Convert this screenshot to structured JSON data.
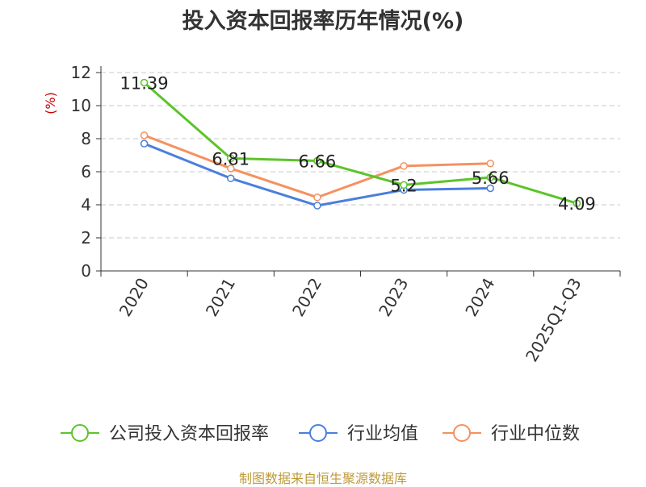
{
  "title": "投入资本回报率历年情况(%)",
  "source": "制图数据来自恒生聚源数据库",
  "colors": {
    "company": "#5cc42a",
    "industry_avg": "#4a7fdb",
    "industry_median": "#f5915f",
    "ylabel": "#cc0000"
  },
  "chart_data": {
    "type": "line",
    "title": "投入资本回报率历年情况(%)",
    "ylabel": "(%)",
    "xlabel": "",
    "ylim": [
      0,
      12
    ],
    "yticks": [
      0,
      2,
      4,
      6,
      8,
      10,
      12
    ],
    "grid": true,
    "legend_position": "bottom",
    "categories": [
      "2020",
      "2021",
      "2022",
      "2023",
      "2024",
      "2025Q1-Q3"
    ],
    "series": [
      {
        "name": "公司投入资本回报率",
        "color": "#5cc42a",
        "values": [
          11.39,
          6.81,
          6.66,
          5.2,
          5.66,
          4.09
        ],
        "labels": [
          "11.39",
          "6.81",
          "6.66",
          "5.2",
          "5.66",
          "4.09"
        ]
      },
      {
        "name": "行业均值",
        "color": "#4a7fdb",
        "values": [
          7.7,
          5.6,
          3.95,
          4.9,
          5.0,
          null
        ]
      },
      {
        "name": "行业中位数",
        "color": "#f5915f",
        "values": [
          8.2,
          6.2,
          4.45,
          6.35,
          6.5,
          null
        ]
      }
    ]
  }
}
